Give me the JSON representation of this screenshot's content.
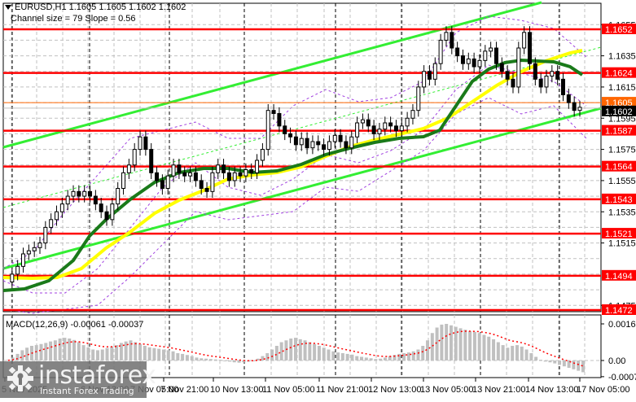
{
  "header": {
    "symbol_line": "EURUSD,H1  1.1605 1.1605 1.1602 1.1602",
    "channel_line": "Channel size = 79 Slope = 0.56"
  },
  "macd": {
    "label": "MACD(12,26,9) -0.00061 -0.00037",
    "axis_labels": [
      "0.00163",
      "0.00",
      "-0.00072"
    ]
  },
  "watermark": {
    "brand": "instaforex",
    "tagline": "Instant Forex Trading"
  },
  "colors": {
    "level_line": "#ff0000",
    "channel_line": "#33ee33",
    "ma_fast": "#1a7a1a",
    "ma_slow": "#ffff00",
    "envelope": "#a040e0",
    "bid_line": "#ff6600",
    "current_price_bg": "#000000",
    "macd_hist": "#c0c0c0",
    "macd_signal": "#ff0000",
    "grid": "#c0c0c0"
  },
  "chart_data": [
    {
      "type": "candlestick",
      "title": "EURUSD,H1",
      "ohlc_current": {
        "open": 1.1605,
        "high": 1.1605,
        "low": 1.1602,
        "close": 1.1602
      },
      "channel": {
        "size": 79,
        "slope": 0.56
      },
      "ylim": [
        1.1466,
        1.1668
      ],
      "y_ticks": [
        "1.1655",
        "1.1635",
        "1.1615",
        "1.1595",
        "1.1575",
        "1.1555",
        "1.1535",
        "1.1515",
        "1.1475"
      ],
      "x_tick_labels": [
        "5 Nov 2025",
        "6 Nov 13:00",
        "7 Nov 05:00",
        "7 Nov 21:00",
        "10 Nov 13:00",
        "11 Nov 05:00",
        "11 Nov 21:00",
        "12 Nov 13:00",
        "13 Nov 05:00",
        "13 Nov 21:00",
        "14 Nov 13:00",
        "17 Nov 05:00"
      ],
      "levels": [
        1.1652,
        1.1624,
        1.1587,
        1.1564,
        1.1543,
        1.1521,
        1.1494,
        1.1472
      ],
      "bid_level": 1.1605,
      "current_price": 1.1602,
      "grid": true
    },
    {
      "type": "bar",
      "title": "MACD(12,26,9)",
      "macd_value": -0.00061,
      "signal_value": -0.00037,
      "ylim": [
        -0.00085,
        0.00175
      ],
      "y_ticks": [
        "0.00163",
        "0.00",
        "-0.00072"
      ]
    }
  ]
}
